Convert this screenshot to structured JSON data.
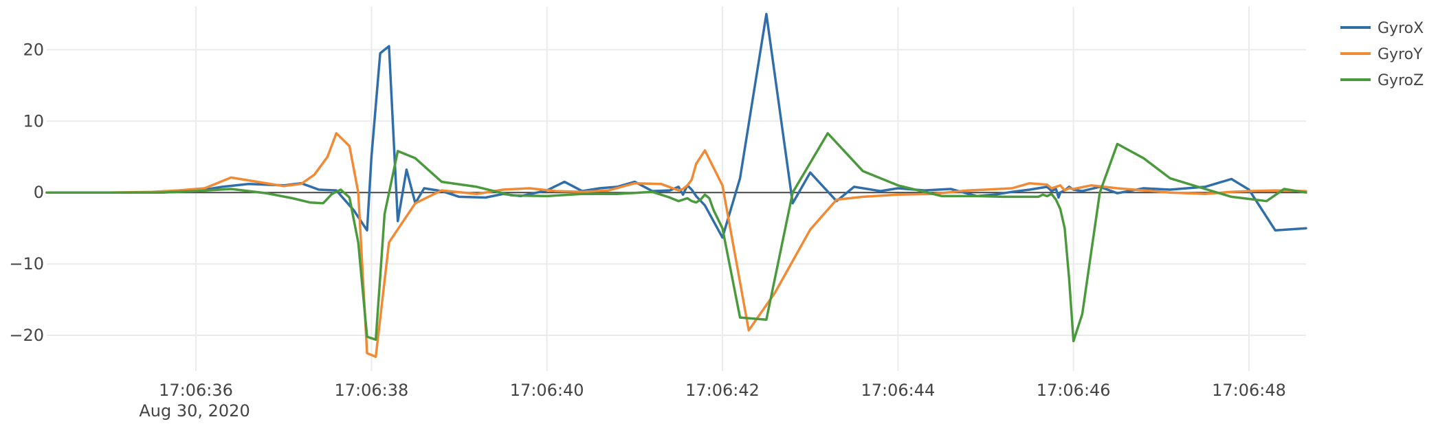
{
  "chart_data": {
    "type": "line",
    "title": "",
    "xlabel": "",
    "ylabel": "",
    "x_range_seconds": [
      34.3,
      48.65
    ],
    "ylim": [
      -25,
      26
    ],
    "x_tick_values": [
      36,
      38,
      40,
      42,
      44,
      46,
      48
    ],
    "x_tick_labels": [
      "17:06:36",
      "17:06:38",
      "17:06:40",
      "17:06:42",
      "17:06:44",
      "17:06:46",
      "17:06:48"
    ],
    "x_date_label": "Aug 30, 2020",
    "y_ticks": [
      20,
      10,
      0,
      -10,
      -20
    ],
    "y_tick_labels": [
      "20",
      "10",
      "0",
      "−10",
      "−20"
    ],
    "legend_position": "top-right",
    "series": [
      {
        "name": "GyroX",
        "color": "#2f6ea8",
        "x": [
          34.3,
          35.0,
          35.6,
          36.0,
          36.3,
          36.6,
          37.0,
          37.2,
          37.4,
          37.6,
          37.8,
          37.95,
          38.0,
          38.1,
          38.2,
          38.3,
          38.4,
          38.5,
          38.6,
          38.8,
          39.0,
          39.3,
          39.5,
          39.7,
          40.0,
          40.2,
          40.4,
          40.6,
          40.8,
          41.0,
          41.2,
          41.4,
          41.5,
          41.55,
          41.6,
          41.65,
          41.7,
          41.8,
          42.0,
          42.2,
          42.5,
          42.8,
          43.0,
          43.3,
          43.5,
          43.8,
          44.0,
          44.3,
          44.6,
          44.9,
          45.1,
          45.3,
          45.5,
          45.7,
          45.75,
          45.8,
          45.83,
          45.85,
          45.9,
          45.95,
          46.0,
          46.1,
          46.3,
          46.5,
          46.8,
          47.1,
          47.5,
          47.8,
          48.0,
          48.3,
          48.65
        ],
        "values": [
          0,
          0,
          0,
          0.2,
          0.8,
          1.2,
          1.0,
          1.3,
          0.4,
          0.3,
          -2.5,
          -5.3,
          5,
          19.5,
          20.5,
          -4,
          3.2,
          -1.5,
          0.6,
          0.2,
          -0.6,
          -0.7,
          -0.2,
          -0.5,
          0.3,
          1.5,
          0.2,
          0.6,
          0.8,
          1.5,
          0.2,
          0.3,
          0.8,
          -0.3,
          1.0,
          0.4,
          -0.5,
          -1.8,
          -6.3,
          2.0,
          25,
          -1.5,
          2.8,
          -1.2,
          0.8,
          0.2,
          0.6,
          0.3,
          0.5,
          -0.5,
          -0.3,
          0.1,
          0.4,
          0.8,
          0.2,
          0.5,
          -0.7,
          0,
          0.3,
          0.8,
          0.4,
          0.2,
          0.8,
          -0.1,
          0.6,
          0.4,
          0.8,
          1.9,
          0.4,
          -5.3,
          -5
        ]
      },
      {
        "name": "GyroY",
        "color": "#f08a35",
        "x": [
          34.3,
          35.0,
          35.5,
          35.8,
          36.1,
          36.4,
          36.7,
          37.0,
          37.2,
          37.35,
          37.5,
          37.6,
          37.75,
          37.85,
          37.95,
          38.05,
          38.2,
          38.5,
          38.8,
          39.2,
          39.5,
          39.8,
          40.1,
          40.4,
          40.7,
          41.0,
          41.3,
          41.5,
          41.55,
          41.6,
          41.65,
          41.7,
          41.8,
          42.0,
          42.3,
          42.6,
          43.0,
          43.3,
          43.6,
          44.0,
          44.4,
          44.8,
          45.0,
          45.3,
          45.5,
          45.7,
          45.75,
          45.8,
          45.85,
          45.9,
          45.95,
          46.0,
          46.2,
          46.5,
          46.8,
          47.1,
          47.5,
          47.8,
          48.0,
          48.3,
          48.65
        ],
        "values": [
          0,
          0,
          0.1,
          0.3,
          0.6,
          2.1,
          1.5,
          0.9,
          1.2,
          2.5,
          5,
          8.3,
          6.5,
          0,
          -22.5,
          -23,
          -7,
          -1.5,
          0.3,
          -0.2,
          0.4,
          0.6,
          0.2,
          0.1,
          0.3,
          1.3,
          1.2,
          0.3,
          0.5,
          1.0,
          1.8,
          4.0,
          5.9,
          1.0,
          -19.3,
          -14,
          -5.2,
          -1.0,
          -0.6,
          -0.3,
          -0.2,
          0.3,
          0.4,
          0.6,
          1.3,
          1.1,
          0.6,
          0.8,
          1.0,
          0.3,
          0.6,
          0.5,
          1.0,
          0.6,
          0.3,
          0,
          -0.2,
          0.1,
          0.2,
          0.3,
          0.2
        ]
      },
      {
        "name": "GyroZ",
        "color": "#4a9a3d",
        "x": [
          34.3,
          35.0,
          35.6,
          36.0,
          36.4,
          36.8,
          37.1,
          37.3,
          37.45,
          37.55,
          37.65,
          37.75,
          37.85,
          37.95,
          38.05,
          38.15,
          38.3,
          38.5,
          38.8,
          39.2,
          39.6,
          40.0,
          40.4,
          40.8,
          41.2,
          41.4,
          41.5,
          41.6,
          41.65,
          41.7,
          41.75,
          41.8,
          41.85,
          41.9,
          42.0,
          42.2,
          42.5,
          42.8,
          43.2,
          43.6,
          44.0,
          44.5,
          44.9,
          45.2,
          45.5,
          45.6,
          45.65,
          45.7,
          45.75,
          45.8,
          45.85,
          45.9,
          45.95,
          46.0,
          46.1,
          46.3,
          46.5,
          46.8,
          47.1,
          47.5,
          47.8,
          48.0,
          48.2,
          48.4,
          48.65
        ],
        "values": [
          0,
          0,
          0,
          0.2,
          0.5,
          -0.1,
          -0.8,
          -1.4,
          -1.5,
          -0.2,
          0.4,
          -0.7,
          -7,
          -20.2,
          -20.6,
          -3,
          5.8,
          4.8,
          1.5,
          0.8,
          -0.4,
          -0.5,
          -0.2,
          -0.2,
          0.1,
          -0.7,
          -1.2,
          -0.8,
          -1.2,
          -1.4,
          -1.0,
          -0.3,
          -0.8,
          -2.5,
          -5,
          -17.5,
          -17.8,
          0,
          8.3,
          3.0,
          1.0,
          -0.5,
          -0.5,
          -0.6,
          -0.6,
          -0.6,
          -0.3,
          -0.5,
          -0.2,
          -1.0,
          -2.3,
          -5,
          -12,
          -20.8,
          -17,
          0,
          6.8,
          4.8,
          2.0,
          0.5,
          -0.6,
          -0.9,
          -1.2,
          0.5,
          0
        ]
      }
    ]
  }
}
